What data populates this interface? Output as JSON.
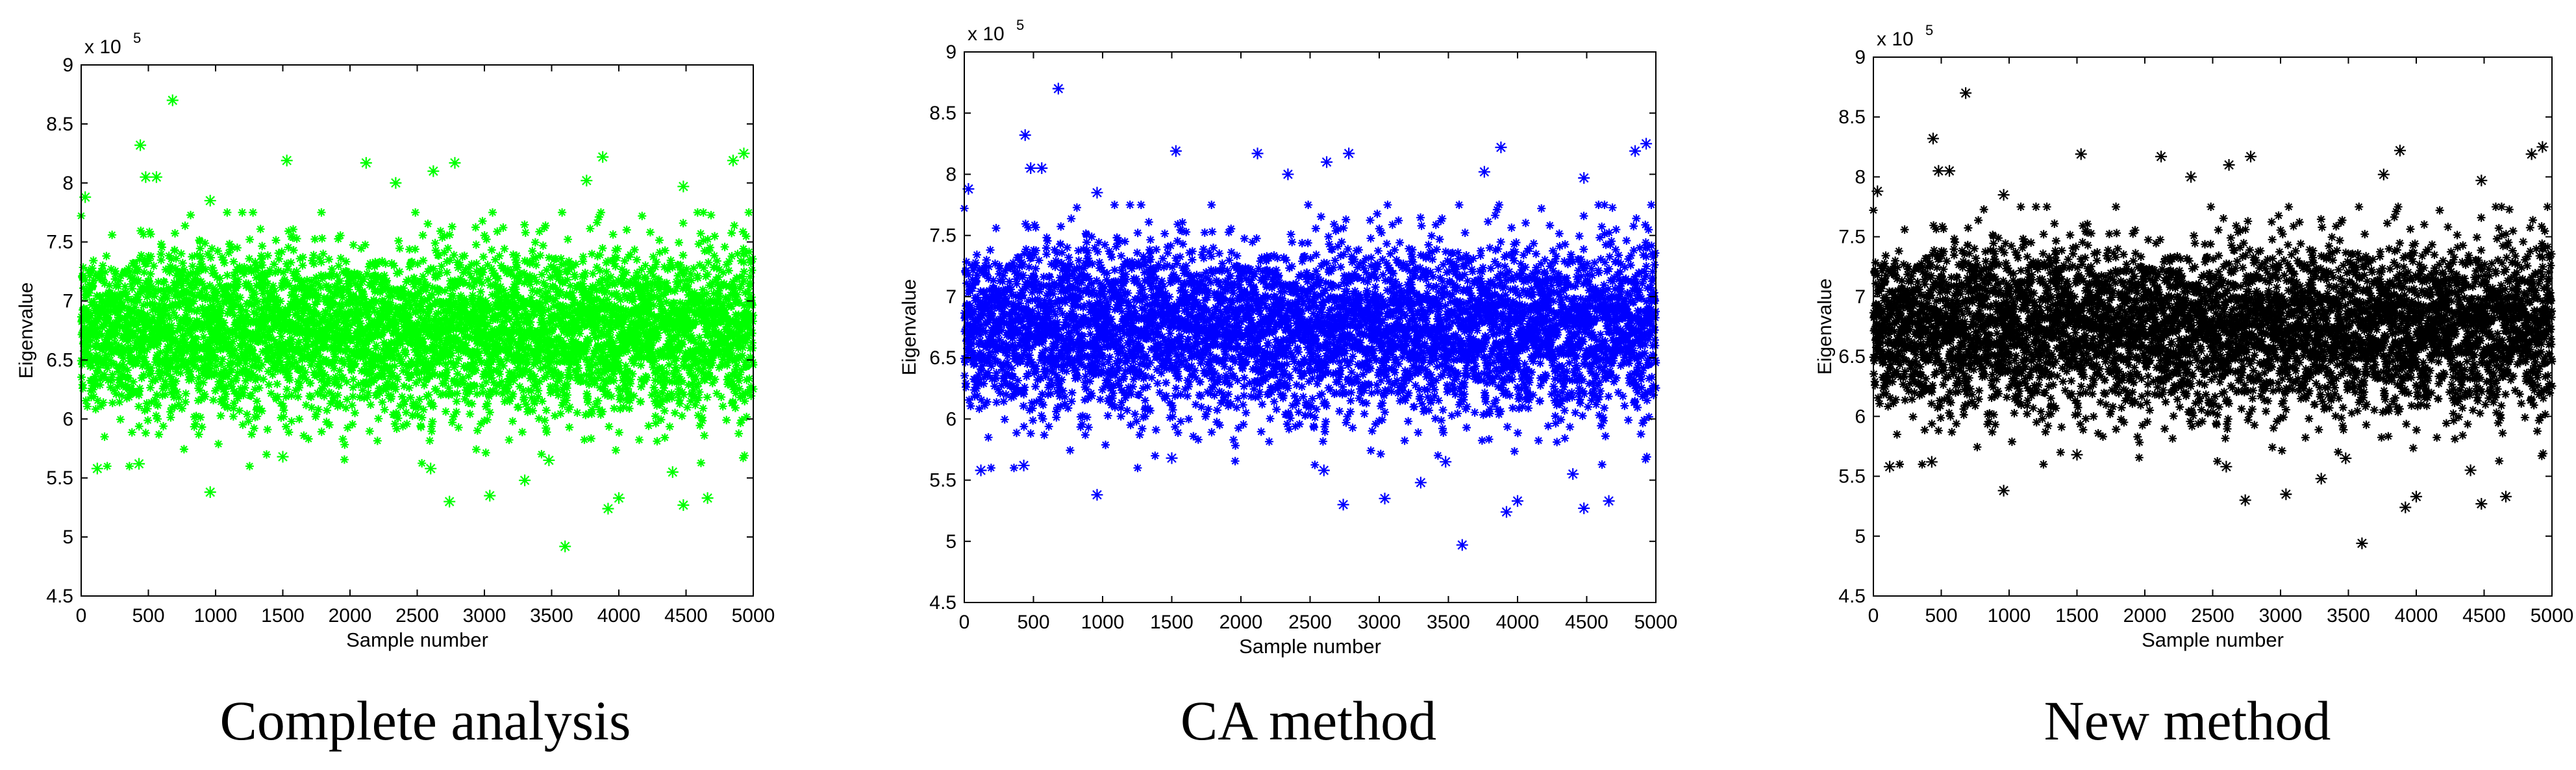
{
  "panels": [
    {
      "caption": "Complete analysis",
      "marker_color": "#00ff00"
    },
    {
      "caption": "CA method",
      "marker_color": "#0000ff"
    },
    {
      "caption": "New method",
      "marker_color": "#000000"
    }
  ],
  "chart_data": [
    {
      "type": "scatter",
      "marker": "*",
      "title": "",
      "xlabel": "Sample number",
      "ylabel": "Eigenvalue",
      "y_exponent_label": "x 10",
      "y_exponent_power": "5",
      "xlim": [
        0,
        5000
      ],
      "ylim": [
        4.5,
        9
      ],
      "x_ticks": [
        "0",
        "500",
        "1000",
        "1500",
        "2000",
        "2500",
        "3000",
        "3500",
        "4000",
        "4500",
        "5000"
      ],
      "y_ticks": [
        "4.5",
        "5",
        "5.5",
        "6",
        "6.5",
        "7",
        "7.5",
        "8",
        "8.5",
        "9"
      ],
      "band": {
        "n_points": 5000,
        "center": 6.75,
        "spread": 0.35
      },
      "outliers": [
        {
          "x": 680,
          "y": 8.7
        },
        {
          "x": 440,
          "y": 8.32
        },
        {
          "x": 1530,
          "y": 8.19
        },
        {
          "x": 3880,
          "y": 8.22
        },
        {
          "x": 4930,
          "y": 8.25
        },
        {
          "x": 2120,
          "y": 8.17
        },
        {
          "x": 2780,
          "y": 8.17
        },
        {
          "x": 2620,
          "y": 8.1
        },
        {
          "x": 480,
          "y": 8.05
        },
        {
          "x": 560,
          "y": 8.05
        },
        {
          "x": 3760,
          "y": 8.02
        },
        {
          "x": 4480,
          "y": 7.97
        },
        {
          "x": 4850,
          "y": 8.19
        },
        {
          "x": 2340,
          "y": 8.0
        },
        {
          "x": 30,
          "y": 7.88
        },
        {
          "x": 960,
          "y": 7.85
        },
        {
          "x": 3600,
          "y": 4.92
        },
        {
          "x": 4000,
          "y": 5.33
        },
        {
          "x": 4480,
          "y": 5.27
        },
        {
          "x": 3920,
          "y": 5.24
        },
        {
          "x": 2740,
          "y": 5.3
        },
        {
          "x": 3040,
          "y": 5.35
        },
        {
          "x": 960,
          "y": 5.38
        },
        {
          "x": 4660,
          "y": 5.33
        },
        {
          "x": 2600,
          "y": 5.58
        },
        {
          "x": 4400,
          "y": 5.55
        },
        {
          "x": 430,
          "y": 5.62
        },
        {
          "x": 3300,
          "y": 5.48
        },
        {
          "x": 3480,
          "y": 5.65
        },
        {
          "x": 1500,
          "y": 5.68
        },
        {
          "x": 120,
          "y": 5.58
        }
      ]
    },
    {
      "type": "scatter",
      "marker": "*",
      "title": "",
      "xlabel": "Sample number",
      "ylabel": "Eigenvalue",
      "y_exponent_label": "x 10",
      "y_exponent_power": "5",
      "xlim": [
        0,
        5000
      ],
      "ylim": [
        4.5,
        9
      ],
      "x_ticks": [
        "0",
        "500",
        "1000",
        "1500",
        "2000",
        "2500",
        "3000",
        "3500",
        "4000",
        "4500",
        "5000"
      ],
      "y_ticks": [
        "4.5",
        "5",
        "5.5",
        "6",
        "6.5",
        "7",
        "7.5",
        "8",
        "8.5",
        "9"
      ],
      "band": {
        "n_points": 5000,
        "center": 6.75,
        "spread": 0.35
      },
      "outliers": [
        {
          "x": 680,
          "y": 8.7
        },
        {
          "x": 440,
          "y": 8.32
        },
        {
          "x": 1530,
          "y": 8.19
        },
        {
          "x": 3880,
          "y": 8.22
        },
        {
          "x": 4930,
          "y": 8.25
        },
        {
          "x": 2120,
          "y": 8.17
        },
        {
          "x": 2780,
          "y": 8.17
        },
        {
          "x": 2620,
          "y": 8.1
        },
        {
          "x": 480,
          "y": 8.05
        },
        {
          "x": 560,
          "y": 8.05
        },
        {
          "x": 3760,
          "y": 8.02
        },
        {
          "x": 4480,
          "y": 7.97
        },
        {
          "x": 4850,
          "y": 8.19
        },
        {
          "x": 2340,
          "y": 8.0
        },
        {
          "x": 30,
          "y": 7.88
        },
        {
          "x": 960,
          "y": 7.85
        },
        {
          "x": 3600,
          "y": 4.97
        },
        {
          "x": 4000,
          "y": 5.33
        },
        {
          "x": 4480,
          "y": 5.27
        },
        {
          "x": 3920,
          "y": 5.24
        },
        {
          "x": 2740,
          "y": 5.3
        },
        {
          "x": 3040,
          "y": 5.35
        },
        {
          "x": 960,
          "y": 5.38
        },
        {
          "x": 4660,
          "y": 5.33
        },
        {
          "x": 2600,
          "y": 5.58
        },
        {
          "x": 4400,
          "y": 5.55
        },
        {
          "x": 430,
          "y": 5.62
        },
        {
          "x": 3300,
          "y": 5.48
        },
        {
          "x": 3480,
          "y": 5.65
        },
        {
          "x": 1500,
          "y": 5.68
        },
        {
          "x": 120,
          "y": 5.58
        }
      ]
    },
    {
      "type": "scatter",
      "marker": "*",
      "title": "",
      "xlabel": "Sample number",
      "ylabel": "Eigenvalue",
      "y_exponent_label": "x 10",
      "y_exponent_power": "5",
      "xlim": [
        0,
        5000
      ],
      "ylim": [
        4.5,
        9
      ],
      "x_ticks": [
        "0",
        "500",
        "1000",
        "1500",
        "2000",
        "2500",
        "3000",
        "3500",
        "4000",
        "4500",
        "5000"
      ],
      "y_ticks": [
        "4.5",
        "5",
        "5.5",
        "6",
        "6.5",
        "7",
        "7.5",
        "8",
        "8.5",
        "9"
      ],
      "band": {
        "n_points": 5000,
        "center": 6.75,
        "spread": 0.35
      },
      "outliers": [
        {
          "x": 680,
          "y": 8.7
        },
        {
          "x": 440,
          "y": 8.32
        },
        {
          "x": 1530,
          "y": 8.19
        },
        {
          "x": 3880,
          "y": 8.22
        },
        {
          "x": 4930,
          "y": 8.25
        },
        {
          "x": 2120,
          "y": 8.17
        },
        {
          "x": 2780,
          "y": 8.17
        },
        {
          "x": 2620,
          "y": 8.1
        },
        {
          "x": 480,
          "y": 8.05
        },
        {
          "x": 560,
          "y": 8.05
        },
        {
          "x": 3760,
          "y": 8.02
        },
        {
          "x": 4480,
          "y": 7.97
        },
        {
          "x": 4850,
          "y": 8.19
        },
        {
          "x": 2340,
          "y": 8.0
        },
        {
          "x": 30,
          "y": 7.88
        },
        {
          "x": 960,
          "y": 7.85
        },
        {
          "x": 3600,
          "y": 4.94
        },
        {
          "x": 4000,
          "y": 5.33
        },
        {
          "x": 4480,
          "y": 5.27
        },
        {
          "x": 3920,
          "y": 5.24
        },
        {
          "x": 2740,
          "y": 5.3
        },
        {
          "x": 3040,
          "y": 5.35
        },
        {
          "x": 960,
          "y": 5.38
        },
        {
          "x": 4660,
          "y": 5.33
        },
        {
          "x": 2600,
          "y": 5.58
        },
        {
          "x": 4400,
          "y": 5.55
        },
        {
          "x": 430,
          "y": 5.62
        },
        {
          "x": 3300,
          "y": 5.48
        },
        {
          "x": 3480,
          "y": 5.65
        },
        {
          "x": 1500,
          "y": 5.68
        },
        {
          "x": 120,
          "y": 5.58
        }
      ]
    }
  ]
}
